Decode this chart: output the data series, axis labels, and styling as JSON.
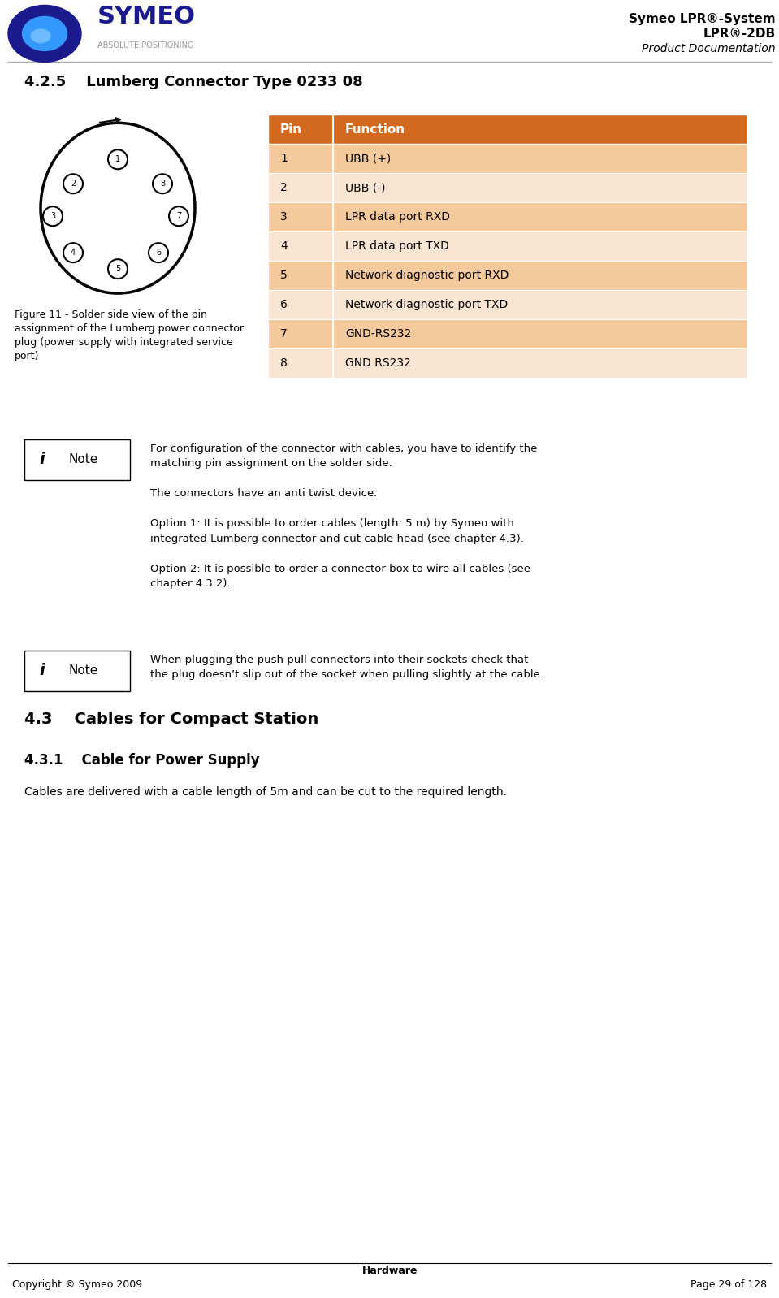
{
  "page_title_line1": "Symeo LPR®-System",
  "page_title_line2": "LPR®-2DB",
  "page_title_line3": "Product Documentation",
  "section_title": "4.2.5    Lumberg Connector Type 0233 08",
  "figure_caption": "Figure 11 - Solder side view of the pin\nassignment of the Lumberg power connector\nplug (power supply with integrated service\nport)",
  "table_header": [
    "Pin",
    "Function"
  ],
  "table_rows": [
    [
      "1",
      "UBB (+)"
    ],
    [
      "2",
      "UBB (-)"
    ],
    [
      "3",
      "LPR data port RXD"
    ],
    [
      "4",
      "LPR data port TXD"
    ],
    [
      "5",
      "Network diagnostic port RXD"
    ],
    [
      "6",
      "Network diagnostic port TXD"
    ],
    [
      "7",
      "GND-RS232"
    ],
    [
      "8",
      "GND RS232"
    ]
  ],
  "table_header_bg": "#D2691E",
  "table_row_odd_bg": "#F4C99C",
  "table_row_even_bg": "#FAE5D3",
  "table_header_color": "#FFFFFF",
  "note1_text": "For configuration of the connector with cables, you have to identify the\nmatching pin assignment on the solder side.\n\nThe connectors have an anti twist device.\n\nOption 1: It is possible to order cables (length: 5 m) by Symeo with\nintegrated Lumberg connector and cut cable head (see chapter 4.3).\n\nOption 2: It is possible to order a connector box to wire all cables (see\nchapter 4.3.2).",
  "note2_text": "When plugging the push pull connectors into their sockets check that\nthe plug doesn’t slip out of the socket when pulling slightly at the cable.",
  "section2_title": "4.3    Cables for Compact Station",
  "section3_title": "4.3.1    Cable for Power Supply",
  "body_text": "Cables are delivered with a cable length of 5m and can be cut to the required length.",
  "footer_center": "Hardware",
  "footer_left": "Copyright © Symeo 2009",
  "footer_right": "Page 29 of 128",
  "bg_color": "#FFFFFF",
  "text_color": "#000000",
  "header_line_color": "#AAAAAA",
  "footer_line_color": "#000000"
}
